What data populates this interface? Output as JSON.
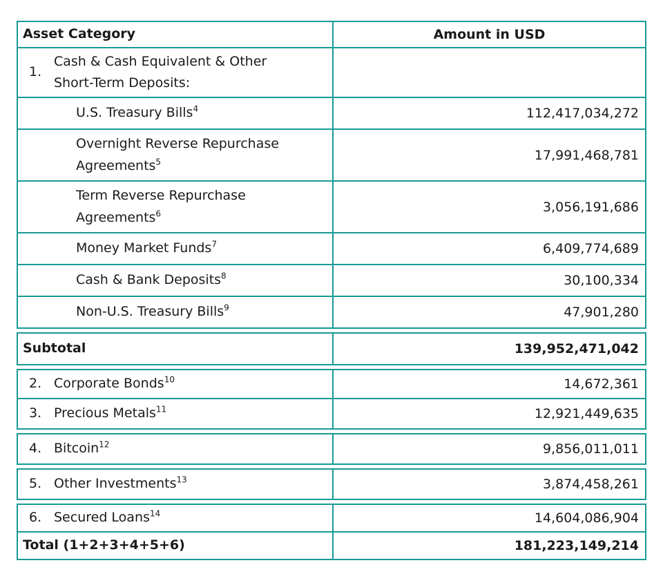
{
  "colors": {
    "border": "#169a94",
    "text": "#1a1a1a",
    "background": "#ffffff"
  },
  "table": {
    "header": {
      "asset_category": "Asset Category",
      "amount_in_usd": "Amount in USD"
    },
    "rows": [
      {
        "num": "1.",
        "label": "Cash & Cash Equivalent & Other Short-Term Deposits:",
        "amount": ""
      },
      {
        "label": "U.S. Treasury Bills",
        "footnote": "4",
        "amount": "112,417,034,272"
      },
      {
        "label": "Overnight Reverse Repurchase Agreements",
        "footnote": "5",
        "amount": "17,991,468,781"
      },
      {
        "label": "Term Reverse Repurchase Agreements",
        "footnote": "6",
        "amount": "3,056,191,686"
      },
      {
        "label": "Money Market Funds",
        "footnote": "7",
        "amount": "6,409,774,689"
      },
      {
        "label": "Cash & Bank Deposits",
        "footnote": "8",
        "amount": "30,100,334"
      },
      {
        "label": "Non-U.S. Treasury Bills",
        "footnote": "9",
        "amount": "47,901,280"
      },
      {
        "label": "Subtotal",
        "amount": "139,952,471,042"
      },
      {
        "num": "2.",
        "label": "Corporate Bonds",
        "footnote": "10",
        "amount": "14,672,361"
      },
      {
        "num": "3.",
        "label": "Precious Metals",
        "footnote": "11",
        "amount": "12,921,449,635"
      },
      {
        "num": "4.",
        "label": "Bitcoin",
        "footnote": "12",
        "amount": "9,856,011,011"
      },
      {
        "num": "5.",
        "label": "Other Investments",
        "footnote": "13",
        "amount": "3,874,458,261"
      },
      {
        "num": "6.",
        "label": "Secured Loans",
        "footnote": "14",
        "amount": "14,604,086,904"
      },
      {
        "label": "Total (1+2+3+4+5+6)",
        "amount": "181,223,149,214"
      }
    ]
  }
}
